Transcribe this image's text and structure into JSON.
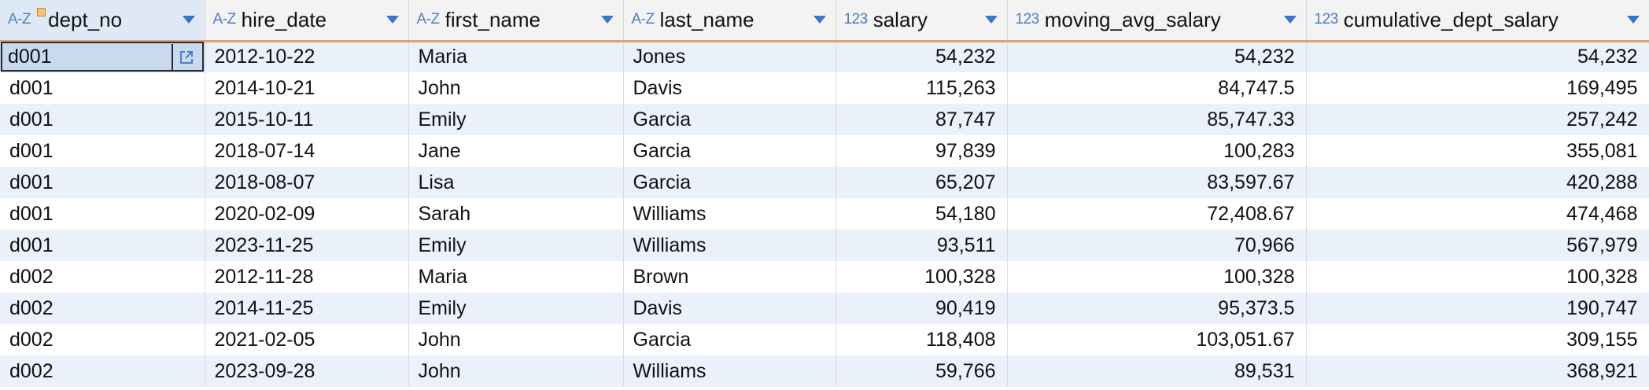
{
  "grid": {
    "columns": [
      {
        "name": "dept_no",
        "type_label": "A-Z",
        "align": "left",
        "key": true
      },
      {
        "name": "hire_date",
        "type_label": "A-Z",
        "align": "left"
      },
      {
        "name": "first_name",
        "type_label": "A-Z",
        "align": "left"
      },
      {
        "name": "last_name",
        "type_label": "A-Z",
        "align": "left"
      },
      {
        "name": "salary",
        "type_label": "123",
        "align": "right"
      },
      {
        "name": "moving_avg_salary",
        "type_label": "123",
        "align": "right"
      },
      {
        "name": "cumulative_dept_salary",
        "type_label": "123",
        "align": "right"
      }
    ],
    "rows": [
      [
        "d001",
        "2012-10-22",
        "Maria",
        "Jones",
        "54,232",
        "54,232",
        "54,232"
      ],
      [
        "d001",
        "2014-10-21",
        "John",
        "Davis",
        "115,263",
        "84,747.5",
        "169,495"
      ],
      [
        "d001",
        "2015-10-11",
        "Emily",
        "Garcia",
        "87,747",
        "85,747.33",
        "257,242"
      ],
      [
        "d001",
        "2018-07-14",
        "Jane",
        "Garcia",
        "97,839",
        "100,283",
        "355,081"
      ],
      [
        "d001",
        "2018-08-07",
        "Lisa",
        "Garcia",
        "65,207",
        "83,597.67",
        "420,288"
      ],
      [
        "d001",
        "2020-02-09",
        "Sarah",
        "Williams",
        "54,180",
        "72,408.67",
        "474,468"
      ],
      [
        "d001",
        "2023-11-25",
        "Emily",
        "Williams",
        "93,511",
        "70,966",
        "567,979"
      ],
      [
        "d002",
        "2012-11-28",
        "Maria",
        "Brown",
        "100,328",
        "100,328",
        "100,328"
      ],
      [
        "d002",
        "2014-11-25",
        "Emily",
        "Davis",
        "90,419",
        "95,373.5",
        "190,747"
      ],
      [
        "d002",
        "2021-02-05",
        "John",
        "Garcia",
        "118,408",
        "103,051.67",
        "309,155"
      ],
      [
        "d002",
        "2023-09-28",
        "John",
        "Williams",
        "59,766",
        "89,531",
        "368,921"
      ]
    ],
    "selected": {
      "row": 0,
      "col": 0
    },
    "icons": {
      "text_type": "az-type-icon",
      "number_type": "numeric-type-icon",
      "key": "primary-key-icon",
      "sort": "sort-dropdown-icon",
      "open_value": "open-in-editor-icon"
    },
    "colors": {
      "header_bg": "#f3f3f3",
      "header_border": "#d9a27d",
      "row_alt": "#eaf1fb",
      "accent": "#3d73c9",
      "selection": "#c9d9ef"
    }
  }
}
